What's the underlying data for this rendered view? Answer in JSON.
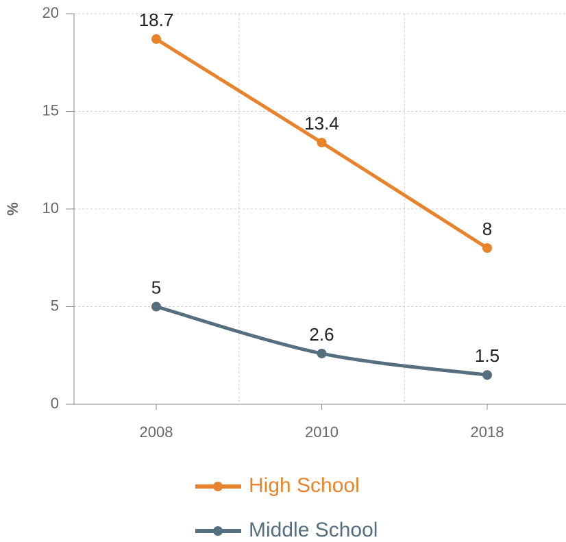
{
  "chart_data": {
    "type": "line",
    "y_label": "%",
    "categories": [
      "2008",
      "2010",
      "2018"
    ],
    "series": [
      {
        "name": "High School",
        "color": "#e8832c",
        "values": [
          18.7,
          13.4,
          8
        ]
      },
      {
        "name": "Middle School",
        "color": "#556f7e",
        "values": [
          5,
          2.6,
          1.5
        ]
      }
    ],
    "ylim": [
      0,
      20
    ],
    "yticks": [
      0,
      5,
      10,
      15,
      20
    ],
    "grid": true,
    "smooth": true,
    "legend": "bottom"
  }
}
